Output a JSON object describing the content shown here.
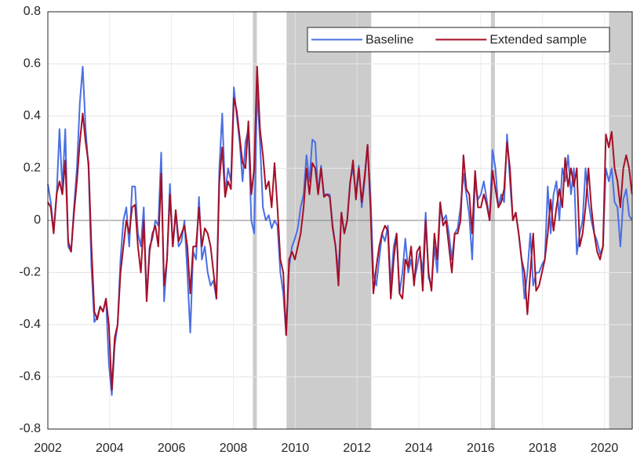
{
  "chart_data": {
    "type": "line",
    "x": [
      2002,
      2002.094,
      2002.188,
      2002.282,
      2002.376,
      2002.47,
      2002.564,
      2002.658,
      2002.752,
      2002.846,
      2002.94,
      2003.034,
      2003.128,
      2003.222,
      2003.316,
      2003.41,
      2003.504,
      2003.598,
      2003.692,
      2003.786,
      2003.88,
      2003.974,
      2004.068,
      2004.162,
      2004.256,
      2004.35,
      2004.444,
      2004.538,
      2004.632,
      2004.726,
      2004.82,
      2004.914,
      2005.008,
      2005.102,
      2005.196,
      2005.29,
      2005.384,
      2005.478,
      2005.572,
      2005.666,
      2005.76,
      2005.854,
      2005.948,
      2006.042,
      2006.136,
      2006.23,
      2006.324,
      2006.418,
      2006.512,
      2006.606,
      2006.7,
      2006.794,
      2006.888,
      2006.982,
      2007.076,
      2007.17,
      2007.264,
      2007.358,
      2007.452,
      2007.546,
      2007.64,
      2007.734,
      2007.828,
      2007.922,
      2008.016,
      2008.11,
      2008.204,
      2008.298,
      2008.392,
      2008.486,
      2008.58,
      2008.674,
      2008.768,
      2008.862,
      2008.956,
      2009.05,
      2009.144,
      2009.238,
      2009.332,
      2009.426,
      2009.52,
      2009.614,
      2009.708,
      2009.802,
      2009.896,
      2009.99,
      2010.084,
      2010.178,
      2010.272,
      2010.366,
      2010.46,
      2010.554,
      2010.648,
      2010.742,
      2010.836,
      2010.93,
      2011.024,
      2011.118,
      2011.212,
      2011.306,
      2011.4,
      2011.494,
      2011.588,
      2011.682,
      2011.776,
      2011.87,
      2011.964,
      2012.058,
      2012.152,
      2012.246,
      2012.34,
      2012.434,
      2012.528,
      2012.622,
      2012.716,
      2012.81,
      2012.904,
      2012.998,
      2013.092,
      2013.186,
      2013.28,
      2013.374,
      2013.468,
      2013.562,
      2013.656,
      2013.75,
      2013.844,
      2013.938,
      2014.032,
      2014.126,
      2014.22,
      2014.314,
      2014.408,
      2014.502,
      2014.596,
      2014.69,
      2014.784,
      2014.878,
      2014.972,
      2015.066,
      2015.16,
      2015.254,
      2015.348,
      2015.442,
      2015.536,
      2015.63,
      2015.724,
      2015.818,
      2015.912,
      2016.006,
      2016.1,
      2016.194,
      2016.288,
      2016.382,
      2016.476,
      2016.57,
      2016.664,
      2016.758,
      2016.852,
      2016.946,
      2017.04,
      2017.134,
      2017.228,
      2017.322,
      2017.416,
      2017.51,
      2017.604,
      2017.698,
      2017.792,
      2017.886,
      2017.98,
      2018.074,
      2018.168,
      2018.262,
      2018.356,
      2018.45,
      2018.544,
      2018.638,
      2018.732,
      2018.826,
      2018.92,
      2019.014,
      2019.108,
      2019.202,
      2019.296,
      2019.39,
      2019.484,
      2019.578,
      2019.672,
      2019.766,
      2019.86,
      2019.954,
      2020.048,
      2020.142,
      2020.236,
      2020.33,
      2020.424,
      2020.518,
      2020.612,
      2020.706,
      2020.8,
      2020.894
    ],
    "series": [
      {
        "name": "Baseline",
        "color": "#4a6fe3",
        "values": [
          0.14,
          0.07,
          -0.04,
          0.09,
          0.35,
          0.12,
          0.35,
          -0.1,
          -0.12,
          0.05,
          0.2,
          0.45,
          0.59,
          0.35,
          0.2,
          -0.18,
          -0.39,
          -0.37,
          -0.33,
          -0.35,
          -0.3,
          -0.55,
          -0.67,
          -0.48,
          -0.4,
          -0.15,
          0.0,
          0.05,
          -0.1,
          0.13,
          0.13,
          -0.05,
          -0.1,
          0.05,
          -0.3,
          -0.1,
          -0.07,
          0.0,
          -0.02,
          0.26,
          -0.31,
          -0.15,
          0.14,
          -0.1,
          0.03,
          -0.1,
          -0.08,
          0.0,
          -0.2,
          -0.43,
          -0.12,
          -0.15,
          0.09,
          -0.15,
          -0.1,
          -0.2,
          -0.25,
          -0.23,
          -0.3,
          0.2,
          0.41,
          0.1,
          0.2,
          0.15,
          0.51,
          0.4,
          0.3,
          0.15,
          0.3,
          0.35,
          0.0,
          -0.05,
          0.5,
          0.3,
          0.05,
          0.0,
          0.02,
          -0.03,
          0.0,
          -0.02,
          -0.2,
          -0.28,
          -0.44,
          -0.18,
          -0.1,
          -0.07,
          -0.03,
          0.05,
          0.1,
          0.25,
          0.15,
          0.31,
          0.3,
          0.1,
          0.21,
          0.1,
          0.1,
          0.1,
          -0.02,
          -0.1,
          -0.2,
          0.03,
          -0.05,
          0.0,
          0.15,
          0.2,
          0.1,
          0.21,
          0.05,
          0.15,
          0.29,
          0.1,
          -0.2,
          -0.25,
          -0.15,
          -0.05,
          -0.08,
          -0.02,
          -0.25,
          -0.1,
          -0.05,
          -0.28,
          -0.2,
          -0.07,
          -0.2,
          -0.15,
          -0.23,
          -0.18,
          -0.12,
          -0.2,
          0.03,
          -0.22,
          -0.25,
          -0.1,
          -0.2,
          0.05,
          0.0,
          0.02,
          -0.05,
          -0.15,
          -0.05,
          -0.03,
          0.05,
          0.18,
          0.1,
          0.02,
          -0.15,
          0.15,
          0.08,
          0.1,
          0.15,
          0.08,
          0.0,
          0.27,
          0.2,
          0.05,
          0.1,
          0.07,
          0.33,
          0.15,
          0.0,
          0.03,
          -0.05,
          -0.15,
          -0.3,
          -0.2,
          -0.05,
          -0.25,
          -0.2,
          -0.2,
          -0.17,
          -0.15,
          0.13,
          -0.05,
          0.1,
          0.15,
          0.0,
          0.2,
          0.15,
          0.25,
          0.1,
          0.2,
          -0.13,
          -0.05,
          0.0,
          0.2,
          0.07,
          0.0,
          -0.05,
          -0.08,
          -0.13,
          -0.1,
          0.2,
          0.15,
          0.2,
          0.07,
          0.05,
          -0.1,
          0.08,
          0.12,
          0.02,
          0.0
        ]
      },
      {
        "name": "Extended sample",
        "color": "#a50f26",
        "values": [
          0.07,
          0.05,
          -0.05,
          0.1,
          0.15,
          0.1,
          0.23,
          -0.08,
          -0.12,
          0.03,
          0.15,
          0.3,
          0.41,
          0.3,
          0.22,
          -0.1,
          -0.35,
          -0.38,
          -0.33,
          -0.35,
          -0.3,
          -0.4,
          -0.65,
          -0.45,
          -0.4,
          -0.2,
          -0.1,
          0.0,
          -0.05,
          0.05,
          0.06,
          -0.1,
          -0.2,
          0.0,
          -0.31,
          -0.12,
          -0.05,
          -0.02,
          -0.1,
          0.18,
          -0.25,
          -0.15,
          0.1,
          -0.1,
          0.04,
          -0.08,
          -0.05,
          -0.02,
          -0.1,
          -0.28,
          -0.1,
          -0.1,
          0.05,
          -0.1,
          -0.03,
          -0.05,
          -0.1,
          -0.2,
          -0.3,
          0.15,
          0.28,
          0.09,
          0.15,
          0.12,
          0.47,
          0.42,
          0.32,
          0.22,
          0.2,
          0.38,
          0.1,
          0.2,
          0.59,
          0.35,
          0.25,
          0.12,
          0.15,
          0.05,
          0.22,
          0.05,
          -0.15,
          -0.2,
          -0.44,
          -0.15,
          -0.12,
          -0.15,
          -0.1,
          -0.05,
          0.05,
          0.2,
          0.1,
          0.22,
          0.2,
          0.1,
          0.2,
          0.09,
          0.1,
          0.09,
          -0.03,
          -0.1,
          -0.25,
          0.03,
          -0.05,
          0.0,
          0.14,
          0.23,
          0.08,
          0.2,
          0.07,
          0.17,
          0.29,
          0.05,
          -0.28,
          -0.18,
          -0.1,
          -0.05,
          -0.02,
          -0.04,
          -0.3,
          -0.15,
          -0.05,
          -0.28,
          -0.3,
          -0.15,
          -0.18,
          -0.1,
          -0.25,
          -0.12,
          -0.1,
          -0.27,
          0.0,
          -0.2,
          -0.27,
          -0.05,
          -0.15,
          0.07,
          -0.02,
          0.0,
          -0.1,
          -0.2,
          -0.05,
          -0.05,
          0.0,
          0.25,
          0.12,
          0.1,
          -0.05,
          0.19,
          0.05,
          0.05,
          0.1,
          0.06,
          0.0,
          0.19,
          0.12,
          0.05,
          0.07,
          0.12,
          0.3,
          0.2,
          0.0,
          0.03,
          -0.05,
          -0.15,
          -0.2,
          -0.36,
          -0.2,
          -0.05,
          -0.27,
          -0.25,
          -0.2,
          -0.15,
          -0.05,
          0.08,
          -0.04,
          0.05,
          0.12,
          0.05,
          0.24,
          0.13,
          0.2,
          0.13,
          0.2,
          -0.1,
          -0.05,
          0.05,
          0.2,
          0.05,
          -0.05,
          -0.12,
          -0.15,
          -0.1,
          0.33,
          0.28,
          0.34,
          0.2,
          0.15,
          0.05,
          0.2,
          0.25,
          0.2,
          0.1
        ]
      }
    ],
    "shaded_regions": [
      [
        2008.63,
        2008.76
      ],
      [
        2009.72,
        2012.46
      ],
      [
        2016.33,
        2016.46
      ],
      [
        2020.15,
        2020.9
      ]
    ],
    "shade_color": "#cccccc",
    "xlim": [
      2002,
      2020.9
    ],
    "xticks": [
      2002,
      2004,
      2006,
      2008,
      2010,
      2012,
      2014,
      2016,
      2018,
      2020
    ],
    "ylim": [
      -0.8,
      0.8
    ],
    "yticks": [
      -0.8,
      -0.6,
      -0.4,
      -0.2,
      0,
      0.2,
      0.4,
      0.6,
      0.8
    ],
    "grid": true,
    "legend": "top-right"
  }
}
